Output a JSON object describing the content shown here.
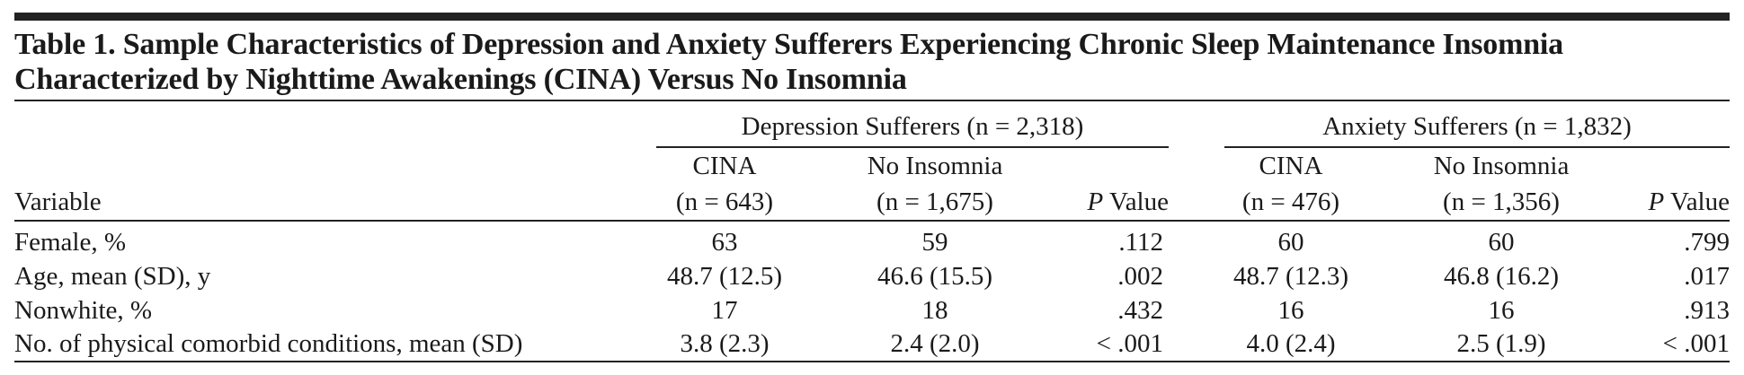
{
  "table": {
    "title": "Table 1. Sample Characteristics of Depression and Anxiety Sufferers Experiencing Chronic Sleep Maintenance Insomnia Characterized by Nighttime Awakenings (CINA) Versus No Insomnia",
    "variable_header": "Variable",
    "groups": [
      {
        "label": "Depression Sufferers (n = 2,318)",
        "cina_label": "CINA",
        "cina_n": "(n = 643)",
        "none_label": "No Insomnia",
        "none_n": "(n = 1,675)",
        "p_letter": "P",
        "p_word": " Value"
      },
      {
        "label": "Anxiety Sufferers (n = 1,832)",
        "cina_label": "CINA",
        "cina_n": "(n = 476)",
        "none_label": "No Insomnia",
        "none_n": "(n = 1,356)",
        "p_letter": "P",
        "p_word": " Value"
      }
    ],
    "rows": [
      {
        "variable": "Female, %",
        "cells": [
          "63",
          "59",
          ".112",
          "60",
          "60",
          ".799"
        ]
      },
      {
        "variable": "Age, mean (SD), y",
        "cells": [
          "48.7 (12.5)",
          "46.6 (15.5)",
          ".002",
          "48.7 (12.3)",
          "46.8 (16.2)",
          ".017"
        ]
      },
      {
        "variable": "Nonwhite, %",
        "cells": [
          "17",
          "18",
          ".432",
          "16",
          "16",
          ".913"
        ]
      },
      {
        "variable": "No. of physical comorbid conditions, mean (SD)",
        "cells": [
          "3.8 (2.3)",
          "2.4 (2.0)",
          "< .001",
          "4.0 (2.4)",
          "2.5 (1.9)",
          "< .001"
        ]
      }
    ]
  }
}
